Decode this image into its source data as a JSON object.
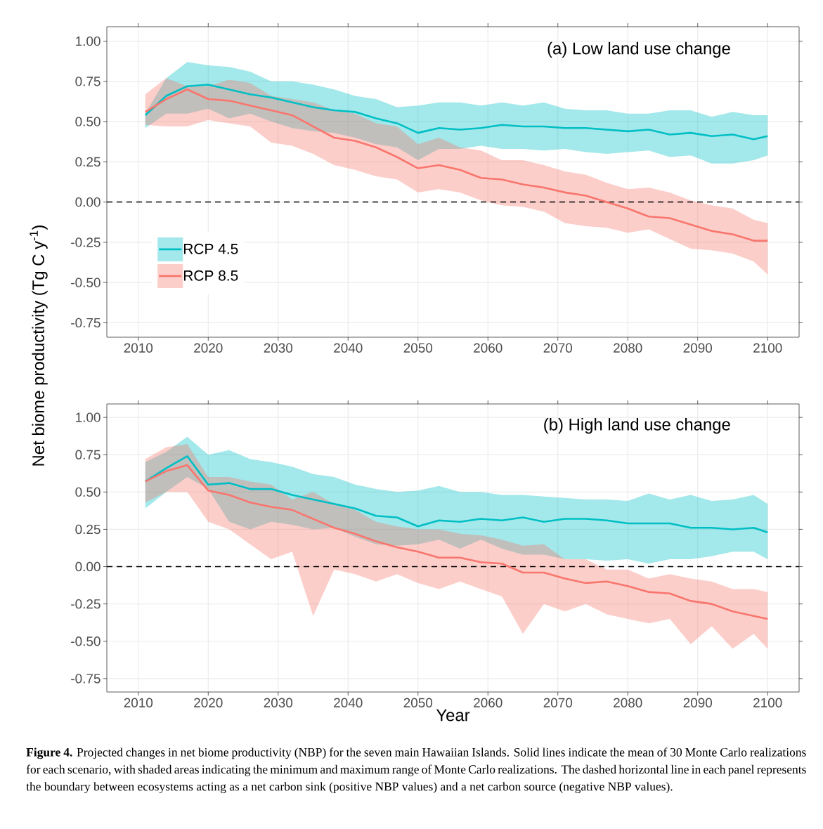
{
  "chart_data": [
    {
      "type": "line",
      "title": "(a) Low land use change",
      "ylabel": "Net biome productivity (Tg C y$^{-1}$)",
      "x": [
        2011,
        2014,
        2017,
        2020,
        2023,
        2026,
        2029,
        2032,
        2035,
        2038,
        2041,
        2044,
        2047,
        2050,
        2053,
        2056,
        2059,
        2062,
        2065,
        2068,
        2071,
        2074,
        2077,
        2080,
        2083,
        2086,
        2089,
        2092,
        2095,
        2098,
        2100
      ],
      "series": [
        {
          "name": "RCP 4.5",
          "color": "#00bfc4",
          "values": [
            0.54,
            0.66,
            0.72,
            0.73,
            0.7,
            0.67,
            0.65,
            0.62,
            0.59,
            0.57,
            0.56,
            0.52,
            0.49,
            0.43,
            0.46,
            0.45,
            0.46,
            0.48,
            0.47,
            0.47,
            0.46,
            0.46,
            0.45,
            0.44,
            0.45,
            0.42,
            0.43,
            0.41,
            0.42,
            0.39,
            0.41
          ],
          "upper": [
            0.55,
            0.77,
            0.87,
            0.85,
            0.84,
            0.81,
            0.75,
            0.75,
            0.73,
            0.7,
            0.66,
            0.64,
            0.59,
            0.6,
            0.62,
            0.62,
            0.6,
            0.62,
            0.6,
            0.62,
            0.58,
            0.57,
            0.57,
            0.55,
            0.55,
            0.57,
            0.57,
            0.53,
            0.56,
            0.54,
            0.54
          ],
          "lower": [
            0.46,
            0.55,
            0.55,
            0.58,
            0.52,
            0.55,
            0.5,
            0.46,
            0.44,
            0.43,
            0.4,
            0.36,
            0.34,
            0.26,
            0.33,
            0.33,
            0.35,
            0.33,
            0.33,
            0.32,
            0.33,
            0.31,
            0.3,
            0.31,
            0.32,
            0.28,
            0.29,
            0.24,
            0.24,
            0.26,
            0.29
          ]
        },
        {
          "name": "RCP 8.5",
          "color": "#f8766d",
          "values": [
            0.56,
            0.64,
            0.7,
            0.64,
            0.63,
            0.6,
            0.57,
            0.54,
            0.47,
            0.4,
            0.38,
            0.34,
            0.28,
            0.21,
            0.23,
            0.2,
            0.15,
            0.14,
            0.11,
            0.09,
            0.06,
            0.04,
            0.0,
            -0.04,
            -0.09,
            -0.1,
            -0.14,
            -0.18,
            -0.2,
            -0.24,
            -0.24
          ],
          "upper": [
            0.67,
            0.77,
            0.72,
            0.72,
            0.76,
            0.74,
            0.66,
            0.64,
            0.62,
            0.57,
            0.55,
            0.49,
            0.47,
            0.36,
            0.4,
            0.34,
            0.32,
            0.26,
            0.26,
            0.23,
            0.19,
            0.17,
            0.12,
            0.08,
            0.09,
            0.06,
            0.01,
            -0.02,
            -0.04,
            -0.11,
            -0.13
          ],
          "lower": [
            0.48,
            0.47,
            0.47,
            0.51,
            0.49,
            0.47,
            0.37,
            0.35,
            0.3,
            0.23,
            0.2,
            0.16,
            0.14,
            0.06,
            0.08,
            0.06,
            0.01,
            -0.02,
            -0.03,
            -0.06,
            -0.13,
            -0.15,
            -0.16,
            -0.19,
            -0.17,
            -0.23,
            -0.29,
            -0.3,
            -0.32,
            -0.37,
            -0.45
          ]
        }
      ],
      "xlim": [
        2005.5,
        2104.5
      ],
      "ylim": [
        -0.84,
        1.09
      ],
      "xticks": [
        2010,
        2020,
        2030,
        2040,
        2050,
        2060,
        2070,
        2080,
        2090,
        2100
      ],
      "yticks": [
        {
          "value": -0.75,
          "label": "-0.75"
        },
        {
          "value": -0.5,
          "label": "-0.50"
        },
        {
          "value": -0.25,
          "label": "-0.25"
        },
        {
          "value": 0,
          "label": "0.00"
        },
        {
          "value": 0.25,
          "label": "0.25"
        },
        {
          "value": 0.5,
          "label": "0.50"
        },
        {
          "value": 0.75,
          "label": "0.75"
        },
        {
          "value": 1,
          "label": "1.00"
        }
      ],
      "ref_lines": [
        {
          "axis": "y",
          "value": 0,
          "color": "#000000",
          "line_style": "dashed"
        }
      ],
      "grid": true,
      "legend": "left"
    },
    {
      "type": "line",
      "title": "(b) High land use change",
      "xlabel": "Year",
      "x": [
        2011,
        2014,
        2017,
        2020,
        2023,
        2026,
        2029,
        2032,
        2035,
        2038,
        2041,
        2044,
        2047,
        2050,
        2053,
        2056,
        2059,
        2062,
        2065,
        2068,
        2071,
        2074,
        2077,
        2080,
        2083,
        2086,
        2089,
        2092,
        2095,
        2098,
        2100
      ],
      "series": [
        {
          "color": "#00bfc4",
          "values": [
            0.57,
            0.66,
            0.74,
            0.55,
            0.56,
            0.52,
            0.52,
            0.48,
            0.45,
            0.42,
            0.39,
            0.34,
            0.33,
            0.27,
            0.31,
            0.3,
            0.32,
            0.31,
            0.33,
            0.3,
            0.32,
            0.32,
            0.31,
            0.29,
            0.29,
            0.29,
            0.26,
            0.26,
            0.25,
            0.26,
            0.23
          ],
          "upper": [
            0.7,
            0.77,
            0.87,
            0.75,
            0.78,
            0.72,
            0.7,
            0.67,
            0.62,
            0.6,
            0.55,
            0.52,
            0.5,
            0.51,
            0.54,
            0.5,
            0.5,
            0.48,
            0.48,
            0.47,
            0.46,
            0.45,
            0.45,
            0.44,
            0.49,
            0.45,
            0.48,
            0.44,
            0.45,
            0.48,
            0.42
          ],
          "lower": [
            0.39,
            0.5,
            0.6,
            0.52,
            0.3,
            0.25,
            0.3,
            0.28,
            0.25,
            0.26,
            0.2,
            0.15,
            0.14,
            0.15,
            0.18,
            0.12,
            0.18,
            0.12,
            0.08,
            0.08,
            0.05,
            0.05,
            0.04,
            0.05,
            0.02,
            0.05,
            0.05,
            0.07,
            0.1,
            0.1,
            0.05
          ]
        },
        {
          "color": "#f8766d",
          "values": [
            0.57,
            0.64,
            0.68,
            0.51,
            0.48,
            0.43,
            0.4,
            0.38,
            0.32,
            0.26,
            0.22,
            0.17,
            0.13,
            0.1,
            0.06,
            0.06,
            0.03,
            0.02,
            -0.04,
            -0.04,
            -0.08,
            -0.11,
            -0.1,
            -0.13,
            -0.17,
            -0.18,
            -0.23,
            -0.25,
            -0.3,
            -0.33,
            -0.35
          ],
          "upper": [
            0.72,
            0.8,
            0.82,
            0.6,
            0.6,
            0.57,
            0.55,
            0.45,
            0.5,
            0.42,
            0.38,
            0.3,
            0.27,
            0.25,
            0.25,
            0.22,
            0.21,
            0.18,
            0.14,
            0.15,
            0.05,
            0.05,
            -0.02,
            -0.02,
            -0.08,
            -0.05,
            -0.08,
            -0.1,
            -0.15,
            -0.15,
            -0.17
          ],
          "lower": [
            0.43,
            0.5,
            0.5,
            0.3,
            0.25,
            0.15,
            0.05,
            0.1,
            -0.33,
            -0.02,
            -0.05,
            -0.1,
            -0.05,
            -0.11,
            -0.15,
            -0.1,
            -0.15,
            -0.2,
            -0.45,
            -0.25,
            -0.3,
            -0.25,
            -0.32,
            -0.35,
            -0.38,
            -0.35,
            -0.52,
            -0.4,
            -0.55,
            -0.45,
            -0.55
          ]
        }
      ],
      "xlim": [
        2005.5,
        2104.5
      ],
      "ylim": [
        -0.84,
        1.09
      ],
      "xticks": [
        2010,
        2020,
        2030,
        2040,
        2050,
        2060,
        2070,
        2080,
        2090,
        2100
      ],
      "yticks": [
        {
          "value": -0.75,
          "label": "-0.75"
        },
        {
          "value": -0.5,
          "label": "-0.50"
        },
        {
          "value": -0.25,
          "label": "-0.25"
        },
        {
          "value": 0,
          "label": "0.00"
        },
        {
          "value": 0.25,
          "label": "0.25"
        },
        {
          "value": 0.5,
          "label": "0.50"
        },
        {
          "value": 0.75,
          "label": "0.75"
        },
        {
          "value": 1,
          "label": "1.00"
        }
      ],
      "ref_lines": [
        {
          "axis": "y",
          "value": 0,
          "color": "#000000",
          "line_style": "dashed"
        }
      ],
      "grid": true,
      "annotations": [
        "**Figure 4.** Projected changes in net biome productivity (NBP) for the seven main Hawaiian Islands. Solid lines indicate the mean of 30 Monte Carlo realizations for each scenario, with shaded areas indicating the minimum and maximum range of Monte Carlo realizations. The dashed horizontal line in each panel represents the boundary between ecosystems acting as a net carbon sink (positive NBP values) and a net carbon source (negative NBP values)."
      ]
    }
  ]
}
